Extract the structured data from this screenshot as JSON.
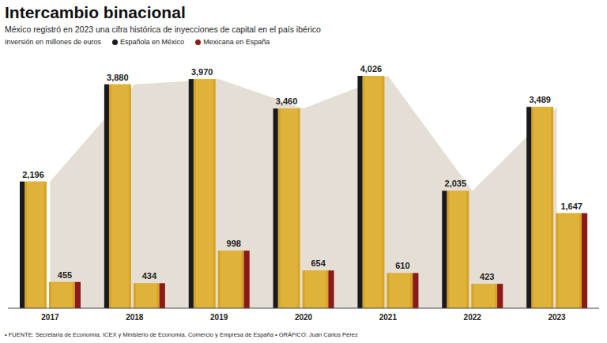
{
  "chart_data": {
    "type": "bar",
    "title": "Intercambio binacional",
    "subtitle": "México registró en 2023 una cifra histórica de inyecciones de capital en el país ibérico",
    "ylabel": "Inversión en millones de euros",
    "source": "• FUENTE: Secretaría de Economía, ICEX y Ministerio de Economía, Comercio y Empresa de España • GRÁFICO: Juan Carlos Pérez",
    "categories": [
      "2017",
      "2018",
      "2019",
      "2020",
      "2021",
      "2022",
      "2023"
    ],
    "series": [
      {
        "name": "Española en México",
        "color": "#1a1a1a",
        "values": [
          2196,
          3880,
          3970,
          3460,
          4026,
          2035,
          3489
        ],
        "value_labels": [
          "2,196",
          "3,880",
          "3,970",
          "3,460",
          "4,026",
          "2,035",
          "3,489"
        ]
      },
      {
        "name": "Mexicana en España",
        "color": "#8b1a1a",
        "values": [
          455,
          434,
          998,
          654,
          610,
          423,
          1647
        ],
        "value_labels": [
          "455",
          "434",
          "998",
          "654",
          "610",
          "423",
          "1,647"
        ]
      }
    ],
    "ylim": [
      0,
      4300
    ],
    "tick_labels": "x",
    "data_labels": true
  }
}
